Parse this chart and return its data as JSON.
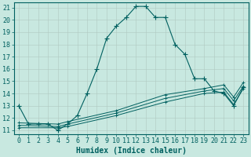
{
  "xlabel": "Humidex (Indice chaleur)",
  "bg_color": "#c8e8e0",
  "grid_color": "#b0c8c0",
  "line_color": "#006060",
  "xlim_min": -0.5,
  "xlim_max": 23.5,
  "ylim_min": 10.7,
  "ylim_max": 21.4,
  "yticks": [
    11,
    12,
    13,
    14,
    15,
    16,
    17,
    18,
    19,
    20,
    21
  ],
  "xticks": [
    0,
    1,
    2,
    3,
    4,
    5,
    6,
    7,
    8,
    9,
    10,
    11,
    12,
    13,
    14,
    15,
    16,
    17,
    18,
    19,
    20,
    21,
    22,
    23
  ],
  "main_x": [
    0,
    1,
    2,
    3,
    4,
    5,
    6,
    7,
    8,
    9,
    10,
    11,
    12,
    13,
    14,
    15,
    16,
    17,
    18,
    19,
    20,
    21,
    22,
    23
  ],
  "main_y": [
    13.0,
    11.5,
    11.5,
    11.5,
    11.0,
    11.5,
    12.2,
    14.0,
    16.0,
    18.5,
    19.5,
    20.2,
    21.1,
    21.1,
    20.2,
    20.2,
    18.0,
    17.2,
    15.2,
    15.2,
    14.2,
    14.0,
    13.0,
    14.5
  ],
  "line2_x": [
    0,
    4,
    5,
    10,
    15,
    19,
    21,
    22,
    23
  ],
  "line2_y": [
    11.2,
    11.2,
    11.3,
    12.2,
    13.3,
    14.0,
    14.1,
    13.1,
    14.4
  ],
  "line3_x": [
    0,
    4,
    5,
    10,
    15,
    19,
    21,
    22,
    23
  ],
  "line3_y": [
    11.4,
    11.3,
    11.5,
    12.4,
    13.6,
    14.2,
    14.4,
    13.4,
    14.6
  ],
  "line4_x": [
    0,
    4,
    5,
    10,
    15,
    19,
    21,
    22,
    23
  ],
  "line4_y": [
    11.6,
    11.5,
    11.7,
    12.6,
    13.9,
    14.4,
    14.7,
    13.7,
    14.9
  ],
  "xlabel_fontsize": 7,
  "tick_fontsize": 6
}
